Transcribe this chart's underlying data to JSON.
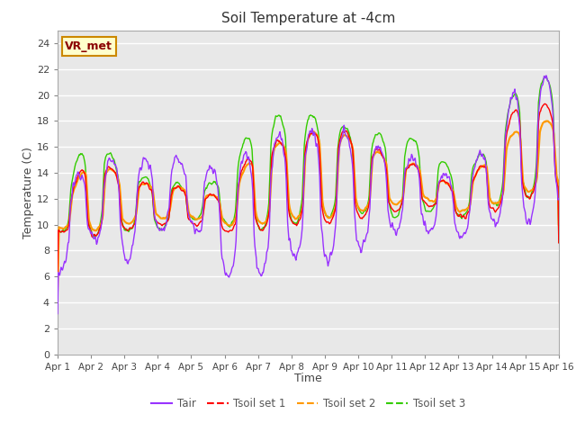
{
  "title": "Soil Temperature at -4cm",
  "xlabel": "Time",
  "ylabel": "Temperature (C)",
  "ylim": [
    0,
    25
  ],
  "yticks": [
    0,
    2,
    4,
    6,
    8,
    10,
    12,
    14,
    16,
    18,
    20,
    22,
    24
  ],
  "xtick_labels": [
    "Apr 1",
    "Apr 2",
    "Apr 3",
    "Apr 4",
    "Apr 5",
    "Apr 6",
    "Apr 7",
    "Apr 8",
    "Apr 9",
    "Apr 10",
    "Apr 11",
    "Apr 12",
    "Apr 13",
    "Apr 14",
    "Apr 15",
    "Apr 16"
  ],
  "colors": {
    "Tair": "#9933FF",
    "Tsoil1": "#FF0000",
    "Tsoil2": "#FF9900",
    "Tsoil3": "#33CC00"
  },
  "legend_labels": [
    "Tair",
    "Tsoil set 1",
    "Tsoil set 2",
    "Tsoil set 3"
  ],
  "fig_bg_color": "#FFFFFF",
  "plot_bg_color": "#E8E8E8",
  "grid_color": "#FFFFFF",
  "annotation_text": "VR_met",
  "annotation_bg": "#FFFFCC",
  "annotation_border": "#CC8800"
}
